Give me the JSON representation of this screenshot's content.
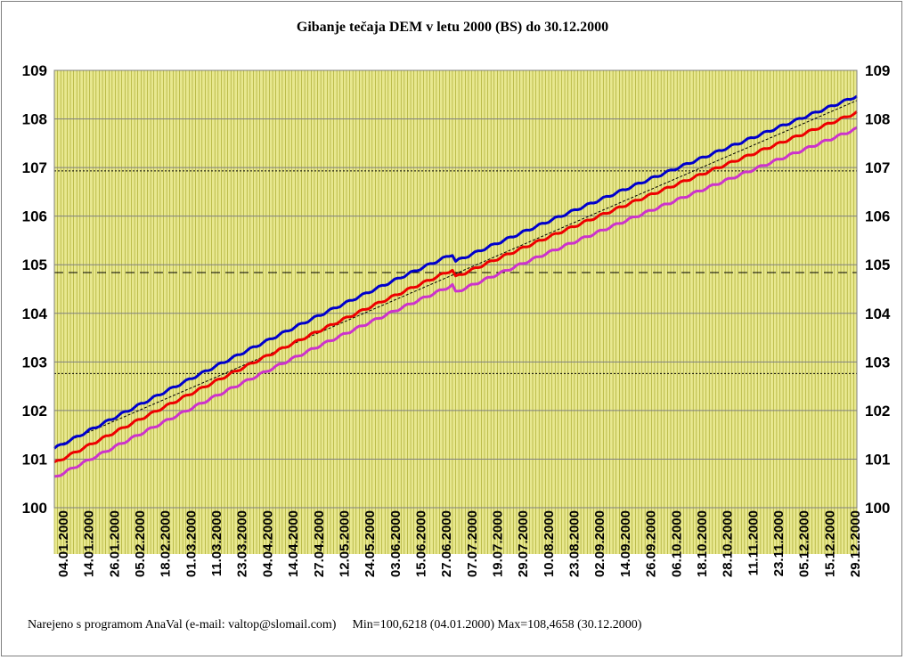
{
  "chart_data": {
    "type": "line",
    "title": "Gibanje tečaja DEM v letu 2000 (BS) do 30.12.2000",
    "ylim": [
      100,
      109
    ],
    "yticks": [
      "100",
      "101",
      "102",
      "103",
      "104",
      "105",
      "106",
      "107",
      "108",
      "109"
    ],
    "x_dates": [
      "04.01.2000",
      "14.01.2000",
      "26.01.2000",
      "05.02.2000",
      "18.02.2000",
      "01.03.2000",
      "11.03.2000",
      "23.03.2000",
      "04.04.2000",
      "14.04.2000",
      "27.04.2000",
      "12.05.2000",
      "24.05.2000",
      "03.06.2000",
      "15.06.2000",
      "27.06.2000",
      "07.07.2000",
      "19.07.2000",
      "29.07.2000",
      "10.08.2000",
      "23.08.2000",
      "02.09.2000",
      "14.09.2000",
      "26.09.2000",
      "06.10.2000",
      "18.10.2000",
      "28.10.2000",
      "11.11.2000",
      "23.11.2000",
      "05.12.2000",
      "15.12.2000",
      "29.12.2000"
    ],
    "plot_background": "#e8e890",
    "grid_color": "#a0a020",
    "series": [
      {
        "color": "#0000cc",
        "start": 101.22,
        "end": 108.47
      },
      {
        "color": "#ee0000",
        "start": 100.92,
        "end": 108.13
      },
      {
        "color": "#cc33cc",
        "start": 100.62,
        "end": 107.8
      }
    ],
    "trendline": {
      "start": 101.25,
      "end": 108.38,
      "color": "#000000",
      "style": "dotted"
    },
    "reference_lines": [
      {
        "value": 106.93,
        "style": "dotted"
      },
      {
        "value": 104.84,
        "style": "dashed"
      },
      {
        "value": 102.76,
        "style": "dotted"
      }
    ],
    "grid": true
  },
  "footer": {
    "credit": "Narejeno s programom AnaVal (e-mail: valtop@slomail.com)",
    "minmax": "Min=100,6218 (04.01.2000) Max=108,4658 (30.12.2000)"
  }
}
